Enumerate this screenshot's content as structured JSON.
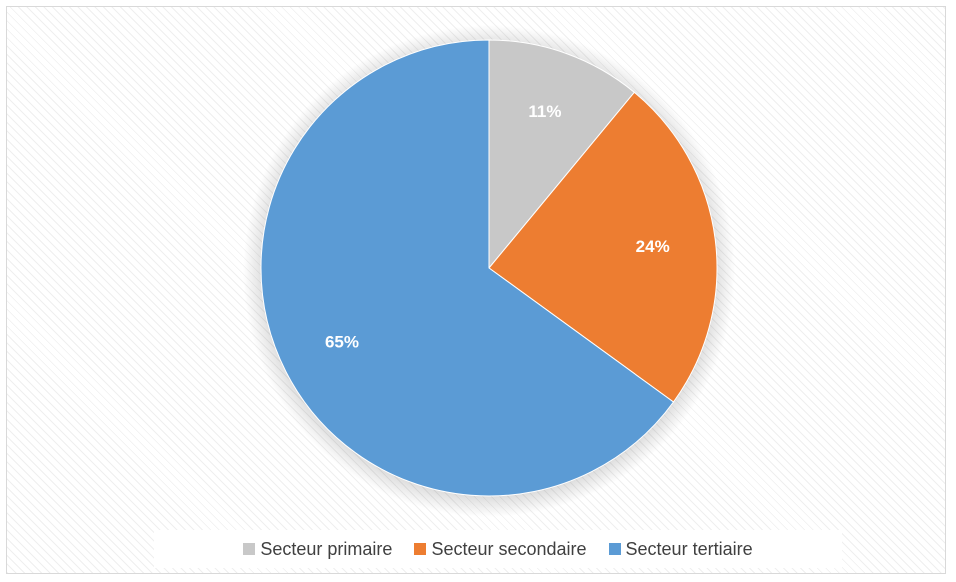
{
  "chart_data": {
    "type": "pie",
    "title": "",
    "categories": [
      "Secteur primaire",
      "Secteur secondaire",
      "Secteur tertiaire"
    ],
    "values": [
      11,
      24,
      65
    ],
    "labels": [
      "11%",
      "24%",
      "65%"
    ],
    "colors": [
      "#c8c8c8",
      "#ed7d31",
      "#5b9bd5"
    ],
    "start_angle": "12 o'clock",
    "direction": "clockwise",
    "legend_position": "bottom"
  }
}
